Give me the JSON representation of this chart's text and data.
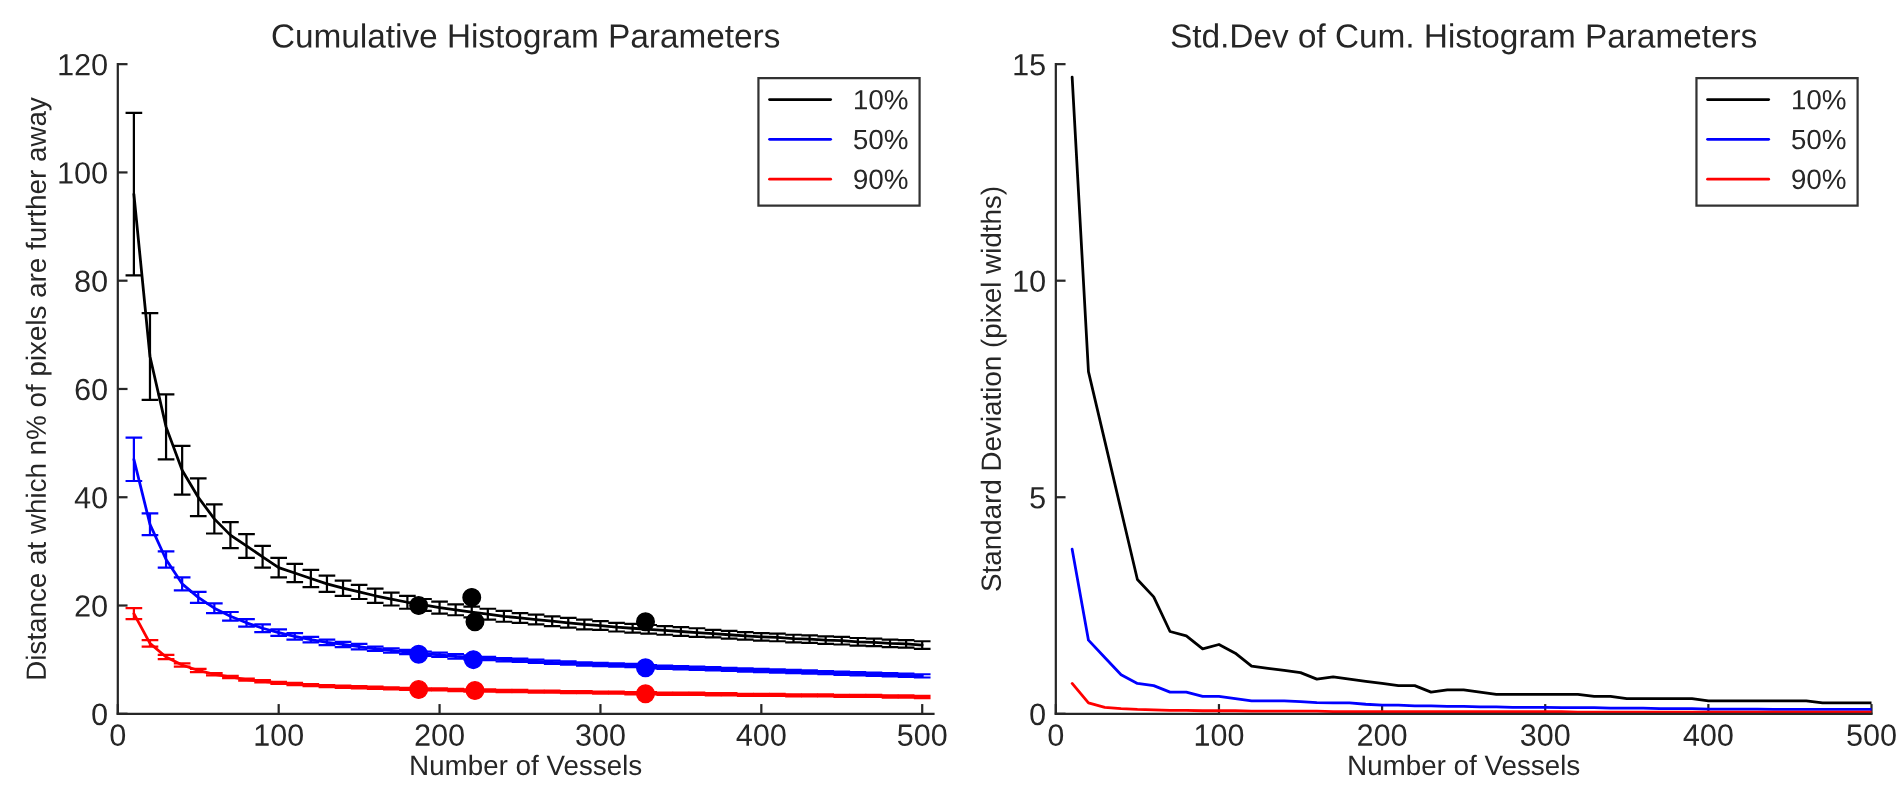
{
  "chart_data": [
    {
      "type": "line",
      "title": "Cumulative Histogram Parameters",
      "xlabel": "Number of Vessels",
      "ylabel": "Distance at which n% of pixels are further away",
      "xlim": [
        0,
        507
      ],
      "ylim": [
        0,
        120
      ],
      "xticks": [
        0,
        100,
        200,
        300,
        400,
        500
      ],
      "yticks": [
        0,
        20,
        40,
        60,
        80,
        100,
        120
      ],
      "grid": false,
      "legend": "top right",
      "marker": "none",
      "line_style": "solid",
      "x": [
        10,
        20,
        30,
        40,
        50,
        60,
        70,
        80,
        90,
        100,
        110,
        120,
        130,
        140,
        150,
        160,
        170,
        180,
        190,
        200,
        210,
        220,
        230,
        240,
        250,
        260,
        270,
        280,
        290,
        300,
        310,
        320,
        330,
        340,
        350,
        360,
        370,
        380,
        390,
        400,
        410,
        420,
        430,
        440,
        450,
        460,
        470,
        480,
        490,
        500
      ],
      "series": [
        {
          "name": "10%",
          "color": "#000000",
          "values": [
            96,
            66,
            53,
            45,
            40,
            36,
            33,
            31,
            29,
            27,
            26,
            25,
            24,
            23.2,
            22.5,
            21.8,
            21.2,
            20.6,
            20.1,
            19.6,
            19.2,
            18.8,
            18.4,
            18.0,
            17.7,
            17.4,
            17.1,
            16.8,
            16.5,
            16.3,
            16.0,
            15.8,
            15.6,
            15.4,
            15.2,
            15.0,
            14.8,
            14.6,
            14.4,
            14.2,
            14.1,
            13.9,
            13.8,
            13.6,
            13.5,
            13.3,
            13.2,
            13.0,
            12.9,
            12.7
          ],
          "errors": [
            15,
            8,
            6,
            4.5,
            3.5,
            2.7,
            2.4,
            2.2,
            2,
            1.8,
            1.7,
            1.6,
            1.5,
            1.4,
            1.3,
            1.3,
            1.2,
            1.2,
            1.1,
            1.1,
            1,
            1,
            1,
            1,
            0.9,
            0.9,
            0.9,
            0.9,
            0.9,
            0.8,
            0.8,
            0.8,
            0.8,
            0.8,
            0.8,
            0.8,
            0.7,
            0.7,
            0.7,
            0.7,
            0.7,
            0.7,
            0.7,
            0.7,
            0.7,
            0.7,
            0.7,
            0.7,
            0.7,
            0.7
          ]
        },
        {
          "name": "50%",
          "color": "#0000ff",
          "values": [
            47,
            35,
            28.5,
            24,
            21.5,
            19.5,
            18,
            16.8,
            15.8,
            15,
            14.3,
            13.7,
            13.2,
            12.8,
            12.4,
            12.0,
            11.7,
            11.4,
            11.1,
            10.9,
            10.6,
            10.4,
            10.2,
            10.0,
            9.9,
            9.7,
            9.5,
            9.4,
            9.2,
            9.1,
            9.0,
            8.9,
            8.7,
            8.6,
            8.5,
            8.4,
            8.3,
            8.2,
            8.1,
            8.0,
            7.9,
            7.8,
            7.7,
            7.6,
            7.5,
            7.4,
            7.3,
            7.2,
            7.1,
            7.0
          ],
          "errors": [
            4,
            2,
            1.5,
            1.2,
            1,
            0.9,
            0.8,
            0.7,
            0.7,
            0.6,
            0.6,
            0.5,
            0.5,
            0.5,
            0.5,
            0.4,
            0.4,
            0.4,
            0.4,
            0.4,
            0.4,
            0.4,
            0.3,
            0.3,
            0.3,
            0.3,
            0.3,
            0.3,
            0.3,
            0.3,
            0.3,
            0.3,
            0.3,
            0.3,
            0.3,
            0.3,
            0.3,
            0.3,
            0.3,
            0.3,
            0.3,
            0.3,
            0.3,
            0.3,
            0.3,
            0.3,
            0.3,
            0.3,
            0.3,
            0.3
          ]
        },
        {
          "name": "90%",
          "color": "#ff0000",
          "values": [
            18.5,
            13,
            10.5,
            9,
            8,
            7.3,
            6.8,
            6.3,
            6.0,
            5.7,
            5.5,
            5.3,
            5.1,
            5.0,
            4.9,
            4.8,
            4.7,
            4.6,
            4.5,
            4.5,
            4.4,
            4.3,
            4.3,
            4.2,
            4.2,
            4.1,
            4.1,
            4.0,
            4.0,
            3.9,
            3.9,
            3.8,
            3.8,
            3.7,
            3.7,
            3.7,
            3.6,
            3.6,
            3.5,
            3.5,
            3.5,
            3.4,
            3.4,
            3.4,
            3.3,
            3.3,
            3.3,
            3.2,
            3.2,
            3.1
          ],
          "errors": [
            1,
            0.6,
            0.4,
            0.3,
            0.3,
            0.2,
            0.2,
            0.2,
            0.2,
            0.2,
            0.2,
            0.2,
            0.2,
            0.2,
            0.2,
            0.2,
            0.2,
            0.2,
            0.2,
            0.2,
            0.2,
            0.2,
            0.2,
            0.2,
            0.2,
            0.2,
            0.2,
            0.2,
            0.2,
            0.2,
            0.2,
            0.2,
            0.2,
            0.2,
            0.2,
            0.2,
            0.2,
            0.2,
            0.2,
            0.2,
            0.2,
            0.2,
            0.2,
            0.2,
            0.2,
            0.2,
            0.2,
            0.2,
            0.2,
            0.2
          ]
        },
        {
          "type": "scatter",
          "marker": "circle",
          "color": "#000000",
          "x": [
            187,
            220,
            222,
            328
          ],
          "values": [
            20,
            21.5,
            17,
            17
          ]
        },
        {
          "type": "scatter",
          "marker": "circle",
          "color": "#0000ff",
          "x": [
            187,
            220,
            221,
            328
          ],
          "values": [
            11,
            null,
            10,
            8.5
          ]
        },
        {
          "type": "scatter",
          "marker": "circle",
          "color": "#ff0000",
          "x": [
            187,
            220,
            222,
            328
          ],
          "values": [
            4.5,
            null,
            4.3,
            3.7
          ]
        }
      ]
    },
    {
      "type": "line",
      "title": "Std.Dev of Cum. Histogram Parameters",
      "xlabel": "Number of Vessels",
      "ylabel": "Standard Deviation (pixel widths)",
      "xlim": [
        0,
        500
      ],
      "ylim": [
        0,
        15
      ],
      "xticks": [
        0,
        100,
        200,
        300,
        400,
        500
      ],
      "yticks": [
        0,
        5,
        10,
        15
      ],
      "grid": false,
      "legend": "top right",
      "marker": "none",
      "line_style": "solid",
      "x": [
        10,
        20,
        30,
        40,
        50,
        60,
        70,
        80,
        90,
        100,
        110,
        120,
        130,
        140,
        150,
        160,
        170,
        180,
        190,
        200,
        210,
        220,
        230,
        240,
        250,
        260,
        270,
        280,
        290,
        300,
        310,
        320,
        330,
        340,
        350,
        360,
        370,
        380,
        390,
        400,
        410,
        420,
        430,
        440,
        450,
        460,
        470,
        480,
        490,
        500
      ],
      "series": [
        {
          "name": "10%",
          "color": "#000000",
          "values": [
            14.7,
            7.9,
            6.3,
            4.7,
            3.1,
            2.7,
            1.9,
            1.8,
            1.5,
            1.6,
            1.4,
            1.1,
            1.05,
            1.0,
            0.95,
            0.8,
            0.85,
            0.8,
            0.75,
            0.7,
            0.65,
            0.65,
            0.5,
            0.55,
            0.55,
            0.5,
            0.45,
            0.45,
            0.45,
            0.45,
            0.45,
            0.45,
            0.4,
            0.4,
            0.35,
            0.35,
            0.35,
            0.35,
            0.35,
            0.3,
            0.3,
            0.3,
            0.3,
            0.3,
            0.3,
            0.3,
            0.25,
            0.25,
            0.25,
            0.25
          ]
        },
        {
          "name": "50%",
          "color": "#0000ff",
          "values": [
            3.8,
            1.7,
            1.3,
            0.9,
            0.7,
            0.65,
            0.5,
            0.5,
            0.4,
            0.4,
            0.35,
            0.3,
            0.3,
            0.3,
            0.28,
            0.26,
            0.25,
            0.25,
            0.22,
            0.2,
            0.2,
            0.18,
            0.18,
            0.17,
            0.17,
            0.16,
            0.16,
            0.15,
            0.15,
            0.15,
            0.14,
            0.14,
            0.14,
            0.13,
            0.13,
            0.13,
            0.12,
            0.12,
            0.12,
            0.11,
            0.11,
            0.11,
            0.11,
            0.1,
            0.1,
            0.1,
            0.1,
            0.1,
            0.1,
            0.1
          ]
        },
        {
          "name": "90%",
          "color": "#ff0000",
          "values": [
            0.7,
            0.25,
            0.15,
            0.12,
            0.1,
            0.09,
            0.08,
            0.08,
            0.07,
            0.07,
            0.07,
            0.06,
            0.06,
            0.06,
            0.06,
            0.06,
            0.05,
            0.05,
            0.05,
            0.05,
            0.05,
            0.05,
            0.05,
            0.05,
            0.05,
            0.05,
            0.05,
            0.05,
            0.05,
            0.05,
            0.05,
            0.04,
            0.04,
            0.04,
            0.04,
            0.04,
            0.04,
            0.04,
            0.04,
            0.04,
            0.04,
            0.04,
            0.04,
            0.04,
            0.04,
            0.04,
            0.04,
            0.04,
            0.04,
            0.04
          ]
        }
      ]
    }
  ]
}
